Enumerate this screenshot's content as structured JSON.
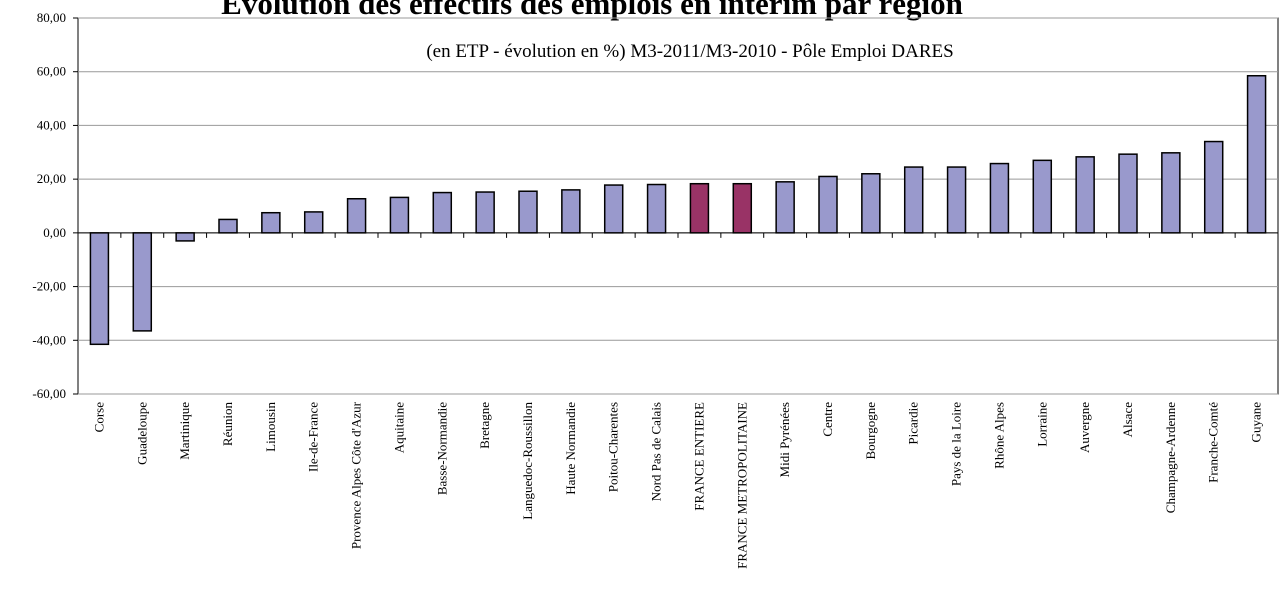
{
  "chart_data": {
    "type": "bar",
    "title": "Évolution des effectifs des emplois en intérim par région",
    "subtitle": "(en ETP - évolution en %) M3-2011/M3-2010 - Pôle Emploi DARES",
    "categories": [
      "Corse",
      "Guadeloupe",
      "Martinique",
      "Réunion",
      "Limousin",
      "Ile-de-France",
      "Provence Alpes Côte d'Azur",
      "Aquitaine",
      "Basse-Normandie",
      "Bretagne",
      "Languedoc-Roussillon",
      "Haute Normandie",
      "Poitou-Charentes",
      "Nord Pas de Calais",
      "FRANCE ENTIERE",
      "FRANCE METROPOLITAINE",
      "Midi Pyrénées",
      "Centre",
      "Bourgogne",
      "Picardie",
      "Pays de la Loire",
      "Rhône Alpes",
      "Lorraine",
      "Auvergne",
      "Alsace",
      "Champagne-Ardenne",
      "Franche-Comté",
      "Guyane"
    ],
    "values": [
      -41.5,
      -36.5,
      -3,
      5,
      7.5,
      7.8,
      12.7,
      13.2,
      15,
      15.2,
      15.5,
      16,
      17.8,
      18,
      18.3,
      18.3,
      19,
      21,
      22,
      24.5,
      24.5,
      25.8,
      27,
      28.3,
      29.3,
      29.8,
      34,
      58.5
    ],
    "colors": [
      "#9999cc",
      "#9999cc",
      "#9999cc",
      "#9999cc",
      "#9999cc",
      "#9999cc",
      "#9999cc",
      "#9999cc",
      "#9999cc",
      "#9999cc",
      "#9999cc",
      "#9999cc",
      "#9999cc",
      "#9999cc",
      "#993366",
      "#993366",
      "#9999cc",
      "#9999cc",
      "#9999cc",
      "#9999cc",
      "#9999cc",
      "#9999cc",
      "#9999cc",
      "#9999cc",
      "#9999cc",
      "#9999cc",
      "#9999cc",
      "#9999cc"
    ],
    "ylim": [
      -60,
      80
    ],
    "yticks": [
      {
        "value": -60,
        "label": "-60,00"
      },
      {
        "value": -40,
        "label": "-40,00"
      },
      {
        "value": -20,
        "label": "-20,00"
      },
      {
        "value": 0,
        "label": "0,00"
      },
      {
        "value": 20,
        "label": "20,00"
      },
      {
        "value": 40,
        "label": "40,00"
      },
      {
        "value": 60,
        "label": "60,00"
      },
      {
        "value": 80,
        "label": "80,00"
      }
    ],
    "grid": true
  }
}
